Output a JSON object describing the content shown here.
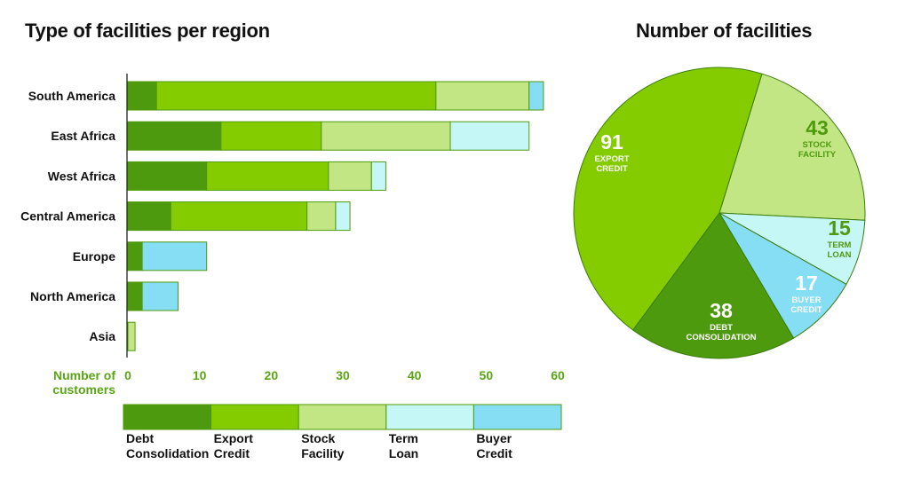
{
  "bar_title": "Type of facilities per region",
  "pie_title": "Number of facilities",
  "colors": {
    "debt_consolidation": "#4e9a0e",
    "export_credit": "#84cc00",
    "stock_facility": "#c3e685",
    "term_loan": "#c6f7f7",
    "buyer_credit": "#86def5",
    "axis_label": "#5aa514",
    "bar_stroke": "#4e9a0e",
    "pie_stroke": "#3a7d0a"
  },
  "chart_data": [
    {
      "type": "bar",
      "orientation": "horizontal",
      "stacked": true,
      "title": "Type of facilities per region",
      "xlabel": "Number of customers",
      "xlim": [
        0,
        60
      ],
      "xticks": [
        0,
        10,
        20,
        30,
        40,
        50,
        60
      ],
      "categories": [
        "South America",
        "East Africa",
        "West Africa",
        "Central America",
        "Europe",
        "North America",
        "Asia"
      ],
      "series": [
        {
          "name": "Debt Consolidation",
          "values": [
            4,
            13,
            11,
            6,
            2,
            2,
            0
          ]
        },
        {
          "name": "Export Credit",
          "values": [
            39,
            14,
            17,
            19,
            0,
            0,
            0
          ]
        },
        {
          "name": "Stock Facility",
          "values": [
            13,
            18,
            6,
            4,
            0,
            0,
            1
          ]
        },
        {
          "name": "Term Loan",
          "values": [
            0,
            11,
            2,
            2,
            0,
            0,
            0
          ]
        },
        {
          "name": "Buyer Credit",
          "values": [
            2,
            0,
            0,
            0,
            9,
            5,
            0
          ]
        }
      ],
      "legend": {
        "placement": "bottom",
        "entries": [
          {
            "line1": "Debt",
            "line2": "Consolidation"
          },
          {
            "line1": "Export",
            "line2": "Credit"
          },
          {
            "line1": "Stock",
            "line2": "Facility"
          },
          {
            "line1": "Term",
            "line2": "Loan"
          },
          {
            "line1": "Buyer",
            "line2": "Credit"
          }
        ]
      }
    },
    {
      "type": "pie",
      "title": "Number of facilities",
      "slices": [
        {
          "label_line1": "STOCK",
          "label_line2": "FACILITY",
          "value": 43
        },
        {
          "label_line1": "TERM",
          "label_line2": "LOAN",
          "value": 15
        },
        {
          "label_line1": "BUYER",
          "label_line2": "CREDIT",
          "value": 17
        },
        {
          "label_line1": "DEBT",
          "label_line2": "CONSOLIDATION",
          "value": 38
        },
        {
          "label_line1": "EXPORT",
          "label_line2": "CREDIT",
          "value": 91
        }
      ]
    }
  ]
}
